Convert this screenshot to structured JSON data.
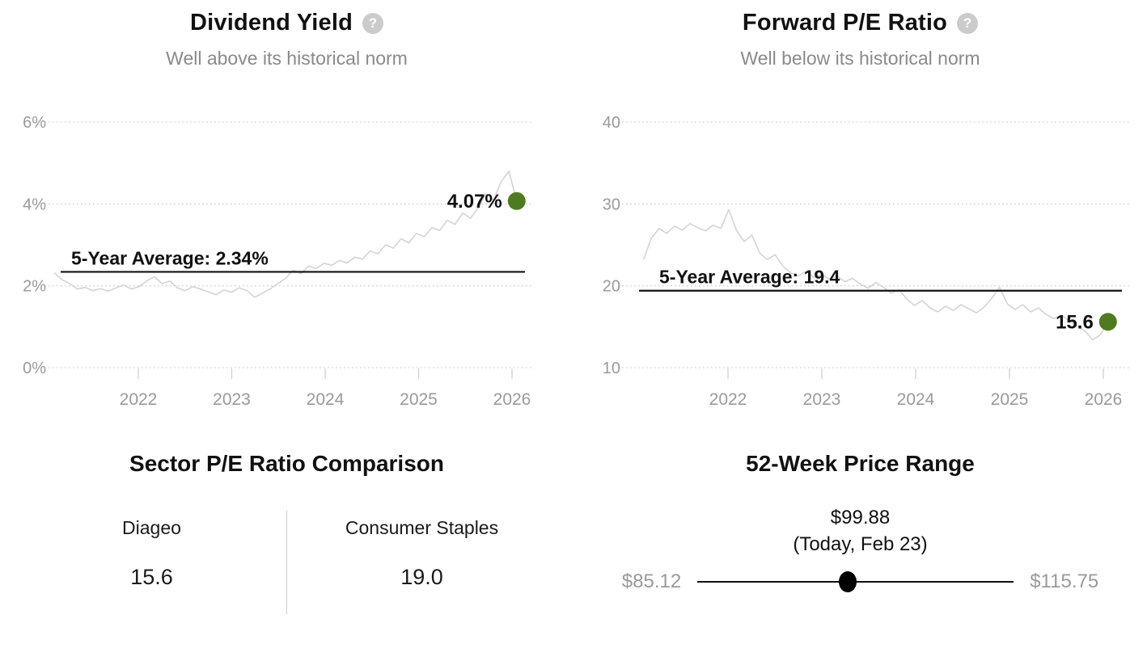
{
  "colors": {
    "accent_green": "#4f7b20",
    "series_line": "#d4d4d4",
    "grid_line": "#cfcfcf",
    "axis_text": "#9a9a9a",
    "average_line": "#111111",
    "subtitle_text": "#8a8a8a",
    "help_icon_bg": "#cbcbcb"
  },
  "help_glyph": "?",
  "chart_data": [
    {
      "type": "line",
      "title": "Dividend Yield",
      "subtitle": "Well above its historical norm",
      "x_unit": "decimal_year",
      "x_start": 2021.1,
      "x_step": 0.0825,
      "x_range": [
        2021.1,
        2026.05
      ],
      "ylim": [
        0,
        6.6
      ],
      "grid": true,
      "values": [
        2.32,
        2.15,
        2.05,
        1.92,
        1.96,
        1.88,
        1.93,
        1.87,
        1.95,
        2.02,
        1.92,
        1.98,
        2.12,
        2.22,
        2.05,
        2.12,
        1.95,
        1.88,
        1.98,
        1.92,
        1.85,
        1.78,
        1.9,
        1.84,
        1.95,
        1.88,
        1.72,
        1.82,
        1.92,
        2.05,
        2.18,
        2.38,
        2.3,
        2.48,
        2.42,
        2.55,
        2.5,
        2.62,
        2.56,
        2.7,
        2.65,
        2.85,
        2.78,
        3.0,
        2.92,
        3.15,
        3.05,
        3.28,
        3.2,
        3.42,
        3.35,
        3.6,
        3.5,
        3.78,
        3.65,
        3.9,
        4.25,
        4.1,
        4.55,
        4.8,
        4.07
      ],
      "yticks": [
        {
          "v": 0,
          "label": "0%"
        },
        {
          "v": 2,
          "label": "2%"
        },
        {
          "v": 4,
          "label": "4%"
        },
        {
          "v": 6,
          "label": "6%"
        }
      ],
      "xticks": [
        {
          "v": 2022,
          "label": "2022"
        },
        {
          "v": 2023,
          "label": "2023"
        },
        {
          "v": 2024,
          "label": "2024"
        },
        {
          "v": 2025,
          "label": "2025"
        },
        {
          "v": 2026,
          "label": "2026"
        }
      ],
      "average": 2.34,
      "average_label": "5-Year Average: 2.34%",
      "current": 4.07,
      "current_label": "4.07%"
    },
    {
      "type": "line",
      "title": "Forward P/E Ratio",
      "subtitle": "Well below its historical norm",
      "x_unit": "decimal_year",
      "x_start": 2021.1,
      "x_step": 0.0825,
      "x_range": [
        2021.1,
        2026.05
      ],
      "ylim": [
        10,
        42
      ],
      "grid": true,
      "values": [
        23.2,
        25.8,
        27.0,
        26.4,
        27.3,
        26.8,
        27.6,
        27.1,
        26.7,
        27.4,
        27.0,
        29.3,
        26.8,
        25.4,
        26.2,
        24.0,
        23.2,
        23.8,
        22.4,
        21.6,
        21.2,
        21.8,
        21.0,
        21.4,
        20.8,
        21.2,
        20.5,
        20.9,
        20.2,
        19.7,
        20.4,
        19.8,
        19.1,
        19.5,
        18.4,
        17.6,
        18.2,
        17.3,
        16.8,
        17.5,
        17.0,
        17.7,
        17.2,
        16.7,
        17.4,
        18.5,
        19.8,
        17.8,
        17.1,
        17.7,
        16.8,
        17.3,
        16.5,
        16.0,
        16.4,
        15.7,
        15.1,
        14.5,
        13.4,
        14.0,
        15.6
      ],
      "yticks": [
        {
          "v": 10,
          "label": "10"
        },
        {
          "v": 20,
          "label": "20"
        },
        {
          "v": 30,
          "label": "30"
        },
        {
          "v": 40,
          "label": "40"
        }
      ],
      "xticks": [
        {
          "v": 2022,
          "label": "2022"
        },
        {
          "v": 2023,
          "label": "2023"
        },
        {
          "v": 2024,
          "label": "2024"
        },
        {
          "v": 2025,
          "label": "2025"
        },
        {
          "v": 2026,
          "label": "2026"
        }
      ],
      "average": 19.4,
      "average_label": "5-Year Average: 19.4",
      "current": 15.6,
      "current_label": "15.6"
    }
  ],
  "sector_comparison": {
    "title": "Sector P/E Ratio Comparison",
    "items": [
      {
        "label": "Diageo",
        "value": "15.6"
      },
      {
        "label": "Consumer Staples",
        "value": "19.0"
      }
    ]
  },
  "price_range": {
    "title": "52-Week Price Range",
    "current_price": "$99.88",
    "current_date": "(Today, Feb 23)",
    "low": "$85.12",
    "high": "$115.75",
    "position_pct": 47.6
  }
}
